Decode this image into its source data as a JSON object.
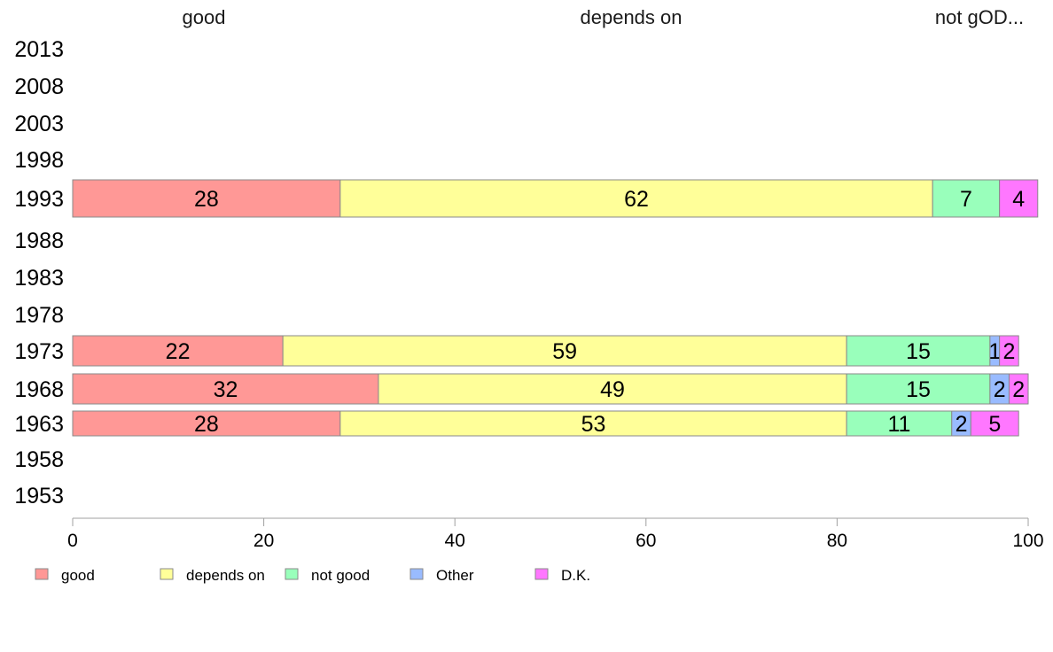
{
  "chart_data": {
    "type": "bar",
    "orientation": "horizontal",
    "stacked": true,
    "top_labels": [
      "good",
      "depends on",
      "not gOD..."
    ],
    "years": [
      "2013",
      "2008",
      "2003",
      "1998",
      "1993",
      "1988",
      "1983",
      "1978",
      "1973",
      "1968",
      "1963",
      "1958",
      "1953"
    ],
    "series": [
      {
        "name": "good",
        "color": "#ff9896",
        "values": {
          "1993": 28,
          "1973": 22,
          "1968": 32,
          "1963": 28
        }
      },
      {
        "name": "depends on",
        "color": "#ffff99",
        "values": {
          "1993": 62,
          "1973": 59,
          "1968": 49,
          "1963": 53
        }
      },
      {
        "name": "not good",
        "color": "#99ffbb",
        "values": {
          "1993": 7,
          "1973": 15,
          "1968": 15,
          "1963": 11
        }
      },
      {
        "name": "Other",
        "color": "#99bbff",
        "values": {
          "1993": 0,
          "1973": 1,
          "1968": 2,
          "1963": 2
        }
      },
      {
        "name": "D.K.",
        "color": "#ff77ff",
        "values": {
          "1993": 4,
          "1973": 2,
          "1968": 2,
          "1963": 5
        }
      }
    ],
    "xlim": [
      0,
      100
    ],
    "xticks": [
      "0",
      "20",
      "40",
      "60",
      "80",
      "100"
    ],
    "legend_position": "bottom-left",
    "grid": false
  }
}
